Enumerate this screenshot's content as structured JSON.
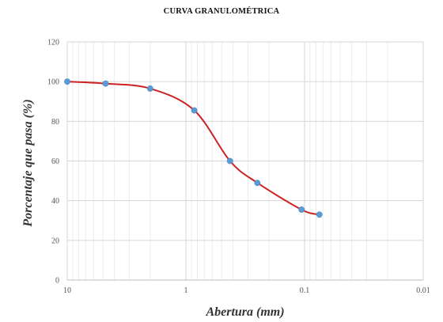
{
  "chart_data": {
    "type": "line",
    "title": "CURVA GRANULOMÉTRICA",
    "xlabel": "Abertura (mm)",
    "ylabel": "Porcentaje que pasa (%)",
    "x_scale": "log",
    "x_reversed": true,
    "xlim": [
      10,
      0.01
    ],
    "ylim": [
      0,
      120
    ],
    "x_ticks": [
      10,
      1,
      0.1,
      0.01
    ],
    "x_tick_labels": [
      "10",
      "1",
      "0.1",
      "0.01"
    ],
    "y_ticks": [
      0,
      20,
      40,
      60,
      80,
      100,
      120
    ],
    "y_tick_labels": [
      "0",
      "20",
      "40",
      "60",
      "80",
      "100",
      "120"
    ],
    "grid": true,
    "legend": "none",
    "smooth": true,
    "series": [
      {
        "line_color": "#cc2222",
        "marker_color": "#5b9bd5",
        "points": [
          {
            "x": 10,
            "y": 100
          },
          {
            "x": 4.75,
            "y": 99
          },
          {
            "x": 2.0,
            "y": 96.5
          },
          {
            "x": 0.85,
            "y": 85.5
          },
          {
            "x": 0.425,
            "y": 60
          },
          {
            "x": 0.25,
            "y": 49
          },
          {
            "x": 0.106,
            "y": 35.5
          },
          {
            "x": 0.075,
            "y": 33
          }
        ]
      }
    ]
  }
}
